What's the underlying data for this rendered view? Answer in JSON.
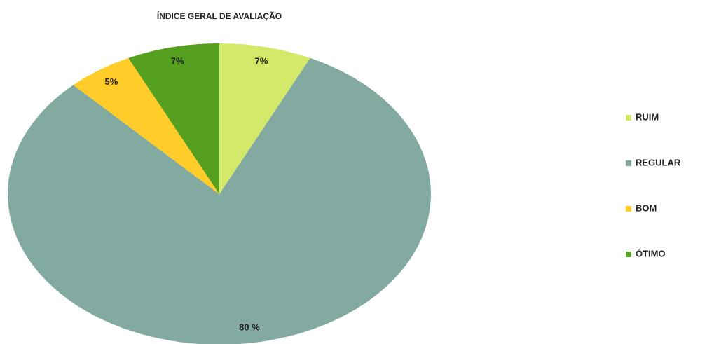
{
  "chart_data": {
    "type": "pie",
    "title": "ÍNDICE GERAL DE AVALIAÇÃO",
    "categories": [
      "RUIM",
      "REGULAR",
      "BOM",
      "ÓTIMO"
    ],
    "values": [
      7,
      80,
      5,
      7
    ],
    "value_labels": [
      "7%",
      "80 %",
      "5%",
      "7%"
    ],
    "colors": [
      "#d4e96a",
      "#82aaa0",
      "#ffcc2a",
      "#55a01e"
    ],
    "legend": "right"
  }
}
